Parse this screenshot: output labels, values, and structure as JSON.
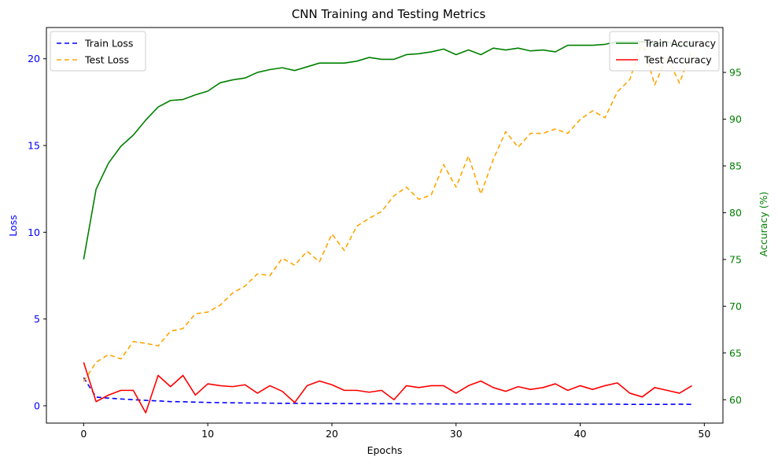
{
  "chart_data": {
    "type": "line",
    "title": "CNN Training and Testing Metrics",
    "xlabel": "Epochs",
    "ylabel_left": "Loss",
    "ylabel_right": "Accuracy (%)",
    "xlim": [
      -3,
      51.5
    ],
    "ylim_left": [
      -1.0,
      21.8
    ],
    "ylim_right": [
      57.5,
      99.8
    ],
    "x_ticks": [
      0,
      10,
      20,
      30,
      40,
      50
    ],
    "y_ticks_left": [
      0,
      5,
      10,
      15,
      20
    ],
    "y_ticks_right": [
      60,
      65,
      70,
      75,
      80,
      85,
      90,
      95
    ],
    "grid": false,
    "legend_left_position": "upper-left",
    "legend_right_position": "upper-right",
    "left_axis_color": "#0000ff",
    "right_axis_color": "#008000",
    "x": [
      0,
      1,
      2,
      3,
      4,
      5,
      6,
      7,
      8,
      9,
      10,
      11,
      12,
      13,
      14,
      15,
      16,
      17,
      18,
      19,
      20,
      21,
      22,
      23,
      24,
      25,
      26,
      27,
      28,
      29,
      30,
      31,
      32,
      33,
      34,
      35,
      36,
      37,
      38,
      39,
      40,
      41,
      42,
      43,
      44,
      45,
      46,
      47,
      48,
      49
    ],
    "series": [
      {
        "name": "Train Loss",
        "axis": "left",
        "color": "#0000ff",
        "dash": "6,4",
        "values": [
          1.62,
          0.5,
          0.44,
          0.39,
          0.35,
          0.31,
          0.28,
          0.24,
          0.23,
          0.21,
          0.19,
          0.18,
          0.17,
          0.16,
          0.16,
          0.15,
          0.14,
          0.14,
          0.14,
          0.13,
          0.13,
          0.13,
          0.12,
          0.12,
          0.12,
          0.12,
          0.11,
          0.11,
          0.11,
          0.1,
          0.11,
          0.1,
          0.11,
          0.1,
          0.1,
          0.1,
          0.1,
          0.1,
          0.1,
          0.09,
          0.09,
          0.09,
          0.09,
          0.09,
          0.08,
          0.08,
          0.08,
          0.08,
          0.09,
          0.08
        ]
      },
      {
        "name": "Test Loss",
        "axis": "left",
        "color": "#ffa500",
        "dash": "6,4",
        "values": [
          1.4,
          2.5,
          2.95,
          2.7,
          3.7,
          3.6,
          3.45,
          4.3,
          4.45,
          5.3,
          5.4,
          5.8,
          6.5,
          6.9,
          7.6,
          7.5,
          8.5,
          8.1,
          8.9,
          8.3,
          9.9,
          8.95,
          10.35,
          10.8,
          11.2,
          12.1,
          12.6,
          11.9,
          12.15,
          13.9,
          12.6,
          14.4,
          12.2,
          14.2,
          15.8,
          14.9,
          15.7,
          15.7,
          15.95,
          15.7,
          16.5,
          17.0,
          16.6,
          18.1,
          18.8,
          21.0,
          18.5,
          20.1,
          18.6,
          20.5
        ]
      },
      {
        "name": "Train Accuracy",
        "axis": "right",
        "color": "#008000",
        "dash": "",
        "values": [
          75.0,
          82.5,
          85.3,
          87.1,
          88.3,
          89.9,
          91.3,
          92.0,
          92.1,
          92.6,
          93.0,
          93.9,
          94.2,
          94.4,
          95.0,
          95.3,
          95.5,
          95.2,
          95.6,
          96.0,
          96.0,
          96.0,
          96.2,
          96.6,
          96.4,
          96.4,
          96.9,
          97.0,
          97.2,
          97.5,
          96.9,
          97.4,
          96.9,
          97.6,
          97.4,
          97.6,
          97.3,
          97.4,
          97.2,
          97.9,
          97.9,
          97.9,
          98.0,
          98.3,
          98.3,
          98.3,
          98.0,
          98.3,
          97.8,
          98.2
        ]
      },
      {
        "name": "Test Accuracy",
        "axis": "right",
        "color": "#ff0000",
        "dash": "",
        "values": [
          64.0,
          59.8,
          60.5,
          61.0,
          61.0,
          58.6,
          62.6,
          61.4,
          62.6,
          60.5,
          61.7,
          61.5,
          61.4,
          61.6,
          60.7,
          61.5,
          60.9,
          59.7,
          61.5,
          62.0,
          61.6,
          61.0,
          61.0,
          60.8,
          61.0,
          60.0,
          61.5,
          61.3,
          61.5,
          61.5,
          60.7,
          61.5,
          62.0,
          61.3,
          60.9,
          61.4,
          61.1,
          61.3,
          61.7,
          61.0,
          61.5,
          61.1,
          61.5,
          61.8,
          60.7,
          60.3,
          61.3,
          61.0,
          60.7,
          61.5
        ]
      }
    ]
  }
}
